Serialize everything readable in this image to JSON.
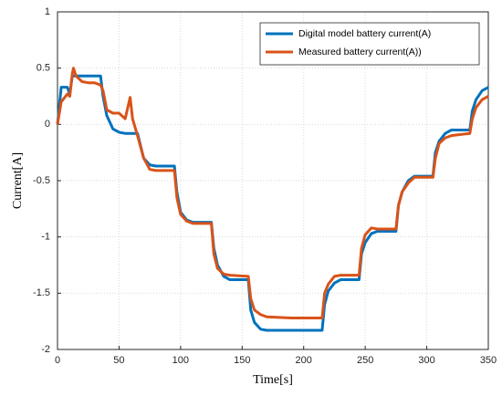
{
  "chart_data": {
    "type": "line",
    "x_label": "Time[s]",
    "y_label": "Current[A]",
    "x": [
      0,
      3,
      8,
      10,
      12,
      13,
      15,
      20,
      25,
      30,
      35,
      37,
      40,
      45,
      50,
      55,
      59,
      61,
      65,
      70,
      75,
      80,
      95,
      97,
      100,
      105,
      110,
      125,
      127,
      130,
      135,
      140,
      155,
      157,
      160,
      165,
      170,
      190,
      215,
      217,
      220,
      225,
      230,
      245,
      247,
      250,
      255,
      260,
      275,
      277,
      280,
      285,
      290,
      305,
      307,
      310,
      315,
      320,
      335,
      337,
      340,
      345,
      350
    ],
    "series": [
      {
        "name": "Digital model battery current(A)",
        "color": "#0072bd",
        "values": [
          0,
          0.33,
          0.33,
          0.27,
          0.43,
          0.43,
          0.43,
          0.43,
          0.43,
          0.43,
          0.43,
          0.25,
          0.08,
          -0.04,
          -0.07,
          -0.08,
          -0.08,
          -0.08,
          -0.08,
          -0.3,
          -0.36,
          -0.37,
          -0.37,
          -0.6,
          -0.78,
          -0.85,
          -0.87,
          -0.87,
          -1.1,
          -1.25,
          -1.35,
          -1.38,
          -1.38,
          -1.65,
          -1.76,
          -1.82,
          -1.83,
          -1.83,
          -1.83,
          -1.6,
          -1.48,
          -1.41,
          -1.38,
          -1.38,
          -1.15,
          -1.05,
          -0.97,
          -0.95,
          -0.95,
          -0.72,
          -0.6,
          -0.5,
          -0.46,
          -0.46,
          -0.25,
          -0.15,
          -0.08,
          -0.05,
          -0.05,
          0.12,
          0.22,
          0.3,
          0.33
        ]
      },
      {
        "name": "Measured battery  current(A))",
        "color": "#d95319",
        "values": [
          0,
          0.2,
          0.27,
          0.25,
          0.45,
          0.5,
          0.43,
          0.38,
          0.37,
          0.37,
          0.35,
          0.3,
          0.13,
          0.1,
          0.1,
          0.05,
          0.24,
          0.05,
          -0.1,
          -0.3,
          -0.4,
          -0.41,
          -0.41,
          -0.65,
          -0.8,
          -0.86,
          -0.88,
          -0.88,
          -1.15,
          -1.28,
          -1.33,
          -1.34,
          -1.35,
          -1.55,
          -1.65,
          -1.69,
          -1.71,
          -1.72,
          -1.72,
          -1.5,
          -1.42,
          -1.35,
          -1.34,
          -1.34,
          -1.1,
          -0.98,
          -0.92,
          -0.93,
          -0.93,
          -0.72,
          -0.6,
          -0.52,
          -0.47,
          -0.47,
          -0.3,
          -0.17,
          -0.12,
          -0.1,
          -0.08,
          0.05,
          0.15,
          0.22,
          0.25
        ]
      }
    ],
    "xlim": [
      0,
      350
    ],
    "xticks": [
      0,
      50,
      100,
      150,
      200,
      250,
      300,
      350
    ],
    "ylim": [
      -2,
      1
    ],
    "yticks": [
      -2,
      -1.5,
      -1,
      -0.5,
      0,
      0.5,
      1
    ],
    "grid": true,
    "legend": "upper right"
  }
}
